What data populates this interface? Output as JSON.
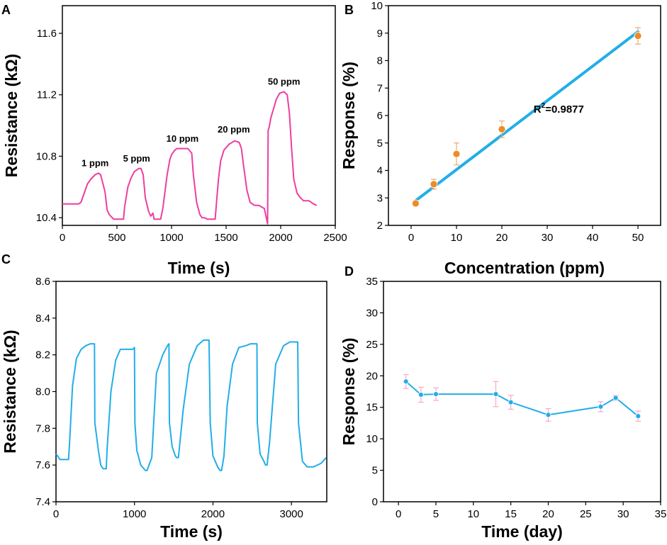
{
  "colors": {
    "pink": "#ee3ea0",
    "blue": "#22aee8",
    "orange": "#f08a24",
    "errPink": "#f5a9c8",
    "errOrange": "#f3a86b"
  },
  "chart_data": [
    {
      "panel": "A",
      "type": "line",
      "xlabel": "Time (s)",
      "ylabel": "Resistance (kΩ)",
      "xlim": [
        0,
        2500
      ],
      "ylim": [
        10.35,
        11.78
      ],
      "xticks": [
        0,
        500,
        1000,
        1500,
        2000,
        2500
      ],
      "yticks": [
        10.4,
        10.8,
        11.2,
        11.6
      ],
      "ytick_format": 1,
      "line_color": "#ee3ea0",
      "series": [
        {
          "name": "Resistance",
          "x": [
            0,
            50,
            100,
            150,
            170,
            200,
            230,
            260,
            300,
            330,
            350,
            390,
            410,
            430,
            470,
            520,
            560,
            570,
            600,
            630,
            660,
            700,
            720,
            740,
            760,
            790,
            810,
            830,
            840,
            870,
            900,
            920,
            960,
            985,
            1000,
            1030,
            1050,
            1080,
            1110,
            1150,
            1185,
            1200,
            1230,
            1260,
            1280,
            1300,
            1330,
            1380,
            1400,
            1410,
            1430,
            1450,
            1480,
            1530,
            1580,
            1620,
            1640,
            1660,
            1690,
            1720,
            1760,
            1800,
            1850,
            1880,
            1885,
            1895,
            1910,
            1935,
            1960,
            1990,
            2030,
            2060,
            2080,
            2100,
            2120,
            2150,
            2180,
            2210,
            2260,
            2300,
            2330
          ],
          "y": [
            10.49,
            10.49,
            10.49,
            10.49,
            10.5,
            10.56,
            10.62,
            10.65,
            10.68,
            10.69,
            10.68,
            10.57,
            10.45,
            10.42,
            10.39,
            10.39,
            10.39,
            10.47,
            10.6,
            10.66,
            10.7,
            10.72,
            10.72,
            10.68,
            10.53,
            10.44,
            10.41,
            10.43,
            10.39,
            10.39,
            10.39,
            10.46,
            10.68,
            10.78,
            10.81,
            10.84,
            10.85,
            10.85,
            10.85,
            10.85,
            10.82,
            10.68,
            10.5,
            10.42,
            10.4,
            10.4,
            10.39,
            10.39,
            10.39,
            10.48,
            10.65,
            10.77,
            10.84,
            10.88,
            10.9,
            10.89,
            10.85,
            10.74,
            10.58,
            10.5,
            10.48,
            10.48,
            10.46,
            10.36,
            10.97,
            10.99,
            11.05,
            11.11,
            11.17,
            11.21,
            11.22,
            11.2,
            11.08,
            10.85,
            10.65,
            10.56,
            10.53,
            10.51,
            10.51,
            10.49,
            10.48
          ]
        }
      ],
      "annotations": [
        {
          "text": "1 ppm",
          "x": 300,
          "y": 10.735
        },
        {
          "text": "5 ppm",
          "x": 680,
          "y": 10.765
        },
        {
          "text": "10 ppm",
          "x": 1100,
          "y": 10.895
        },
        {
          "text": "20 ppm",
          "x": 1570,
          "y": 10.955
        },
        {
          "text": "50 ppm",
          "x": 2030,
          "y": 11.265
        }
      ]
    },
    {
      "panel": "B",
      "type": "scatter",
      "xlabel": "Concentration (ppm)",
      "ylabel": "Response (%)",
      "xlim": [
        -5,
        55
      ],
      "ylim": [
        2,
        10
      ],
      "xticks": [
        0,
        10,
        20,
        30,
        40,
        50
      ],
      "yticks": [
        2,
        3,
        4,
        5,
        6,
        7,
        8,
        9,
        10
      ],
      "ytick_format": 0,
      "marker_color": "#f08a24",
      "line_color": "#22aee8",
      "series": [
        {
          "name": "Response",
          "x": [
            1,
            5,
            10,
            20,
            50
          ],
          "y": [
            2.8,
            3.5,
            4.6,
            5.5,
            8.9
          ],
          "err": [
            0.1,
            0.18,
            0.4,
            0.3,
            0.3
          ]
        }
      ],
      "fit": {
        "x": [
          1,
          50
        ],
        "y": [
          2.9,
          9.05
        ]
      },
      "r2_prefix": "R",
      "r2_sup": "2",
      "r2_value": "=0.9877"
    },
    {
      "panel": "C",
      "type": "line",
      "xlabel": "Time (s)",
      "ylabel": "Resistance (kΩ)",
      "xlim": [
        0,
        3450
      ],
      "ylim": [
        7.4,
        8.6
      ],
      "xticks": [
        0,
        1000,
        2000,
        3000
      ],
      "yticks": [
        7.4,
        7.6,
        7.8,
        8.0,
        8.2,
        8.4,
        8.6
      ],
      "ytick_format": 1,
      "line_color": "#22aee8",
      "series": [
        {
          "name": "Resistance",
          "x": [
            0,
            20,
            50,
            100,
            160,
            175,
            210,
            260,
            320,
            380,
            440,
            460,
            490,
            495,
            540,
            570,
            600,
            640,
            650,
            700,
            760,
            820,
            900,
            980,
            1000,
            1005,
            1030,
            1080,
            1120,
            1140,
            1160,
            1220,
            1280,
            1360,
            1420,
            1440,
            1445,
            1480,
            1520,
            1540,
            1560,
            1620,
            1700,
            1800,
            1880,
            1950,
            1965,
            2000,
            2060,
            2090,
            2110,
            2140,
            2180,
            2250,
            2330,
            2420,
            2480,
            2560,
            2565,
            2600,
            2650,
            2670,
            2690,
            2720,
            2800,
            2900,
            2980,
            3080,
            3090,
            3140,
            3200,
            3280,
            3380,
            3440
          ],
          "y": [
            7.66,
            7.65,
            7.63,
            7.63,
            7.63,
            7.74,
            8.03,
            8.18,
            8.23,
            8.25,
            8.26,
            8.26,
            8.26,
            7.83,
            7.68,
            7.6,
            7.58,
            7.58,
            7.68,
            8.0,
            8.17,
            8.23,
            8.23,
            8.23,
            8.24,
            7.83,
            7.68,
            7.6,
            7.58,
            7.57,
            7.57,
            7.64,
            8.1,
            8.2,
            8.25,
            8.26,
            7.83,
            7.7,
            7.65,
            7.64,
            7.64,
            7.9,
            8.15,
            8.25,
            8.28,
            8.28,
            7.83,
            7.65,
            7.59,
            7.57,
            7.57,
            7.65,
            7.92,
            8.15,
            8.24,
            8.25,
            8.26,
            8.26,
            7.83,
            7.66,
            7.62,
            7.6,
            7.6,
            7.72,
            8.15,
            8.25,
            8.27,
            8.27,
            7.83,
            7.62,
            7.59,
            7.59,
            7.61,
            7.64
          ]
        }
      ]
    },
    {
      "panel": "D",
      "type": "line",
      "xlabel": "Time (day)",
      "ylabel": "Response (%)",
      "xlim": [
        -2,
        35
      ],
      "ylim": [
        0,
        35
      ],
      "xticks": [
        0,
        5,
        10,
        15,
        20,
        25,
        30,
        35
      ],
      "yticks": [
        0,
        5,
        10,
        15,
        20,
        25,
        30,
        35
      ],
      "ytick_format": 0,
      "line_color": "#22aee8",
      "series": [
        {
          "name": "Response",
          "x": [
            1,
            3,
            5,
            13,
            15,
            20,
            27,
            29,
            32
          ],
          "y": [
            19.1,
            17.0,
            17.1,
            17.1,
            15.8,
            13.8,
            15.1,
            16.5,
            13.6
          ],
          "err": [
            1.1,
            1.2,
            1.0,
            2.0,
            1.1,
            1.0,
            0.8,
            0.4,
            0.8
          ]
        }
      ]
    }
  ]
}
